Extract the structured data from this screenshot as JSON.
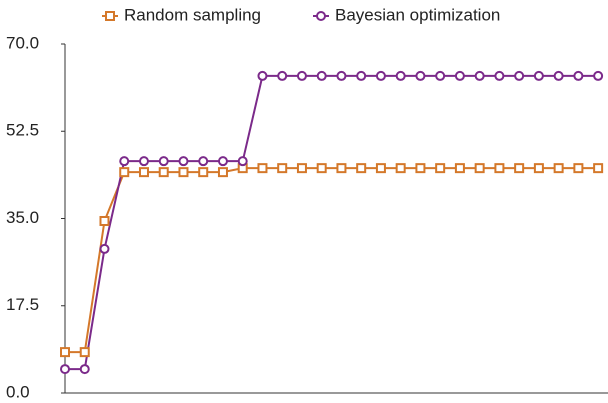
{
  "chart_data": {
    "type": "line",
    "x": [
      1,
      2,
      3,
      4,
      5,
      6,
      7,
      8,
      9,
      10,
      11,
      12,
      13,
      14,
      15,
      16,
      17,
      18,
      19,
      20,
      21,
      22,
      23,
      24,
      25,
      26,
      27,
      28
    ],
    "xlim": [
      1,
      28.5
    ],
    "ylim": [
      0,
      70
    ],
    "yticks": [
      {
        "value": 0,
        "label": "0.0"
      },
      17.5,
      {
        "value": 35,
        "label": "35.0"
      },
      52.5,
      {
        "value": 70,
        "label": "70.0"
      }
    ],
    "grid": false,
    "legend": "top",
    "series": [
      {
        "name": "Random sampling",
        "color": "#d4782a",
        "marker": "square",
        "values": [
          8.2,
          8.2,
          34.5,
          44.3,
          44.3,
          44.3,
          44.3,
          44.3,
          44.3,
          45.1,
          45.1,
          45.1,
          45.1,
          45.1,
          45.1,
          45.1,
          45.1,
          45.1,
          45.1,
          45.1,
          45.1,
          45.1,
          45.1,
          45.1,
          45.1,
          45.1,
          45.1,
          45.1
        ]
      },
      {
        "name": "Bayesian optimization",
        "color": "#7b2a8a",
        "marker": "circle",
        "values": [
          4.8,
          4.8,
          28.9,
          46.5,
          46.5,
          46.5,
          46.5,
          46.5,
          46.5,
          46.5,
          63.6,
          63.6,
          63.6,
          63.6,
          63.6,
          63.6,
          63.6,
          63.6,
          63.6,
          63.6,
          63.6,
          63.6,
          63.6,
          63.6,
          63.6,
          63.6,
          63.6,
          63.6
        ]
      }
    ]
  }
}
